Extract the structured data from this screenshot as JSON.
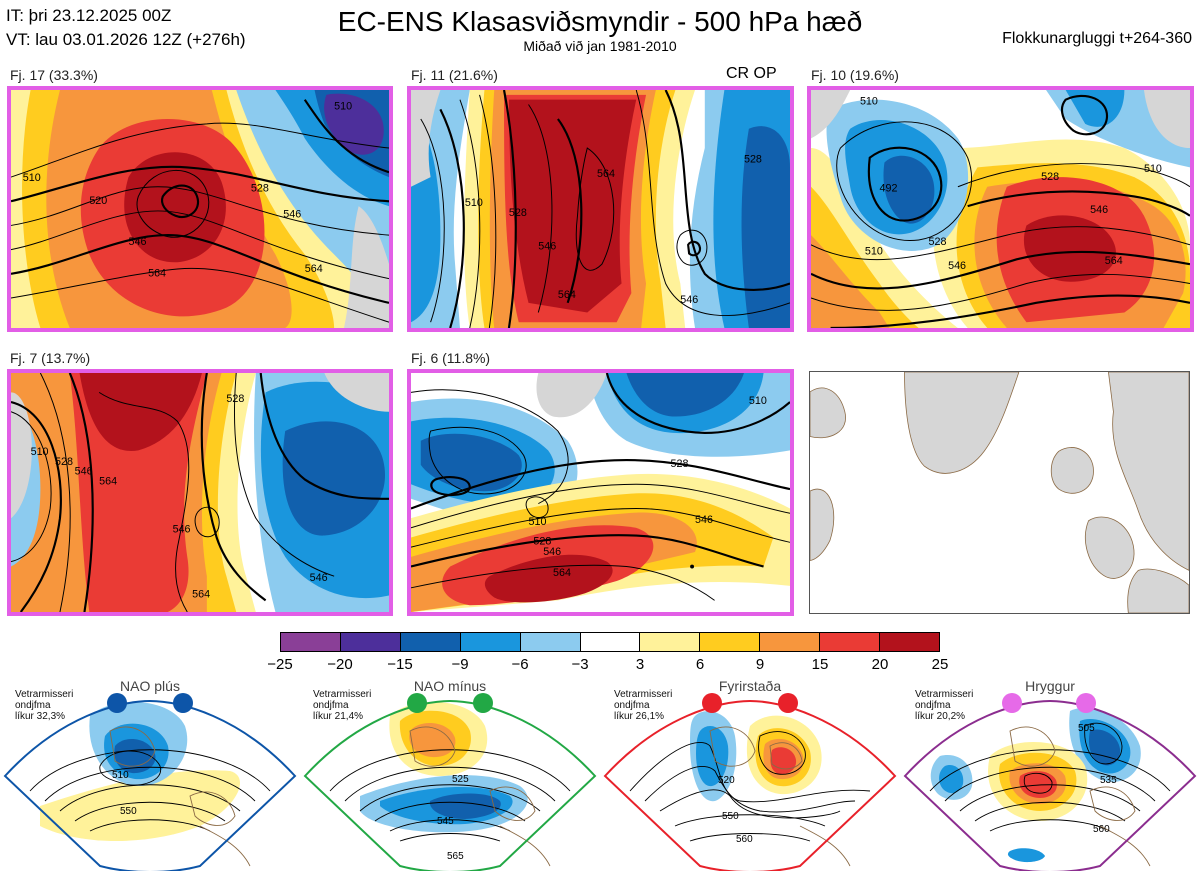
{
  "header": {
    "init_time": "IT: þri 23.12.2025 00Z",
    "valid_time": "VT: lau 03.01.2026 12Z  (+276h)",
    "title": "EC-ENS Klasasviðsmyndir - 500 hPa hæð",
    "subtitle": "Miðað við jan 1981-2010",
    "window": "Flokkunargluggi t+264-360"
  },
  "panels": [
    {
      "label": "Fj. 17 (33.3%)",
      "contours": [
        "510",
        "520",
        "546",
        "564",
        "528",
        "546",
        "564",
        "510"
      ],
      "tag": ""
    },
    {
      "label": "Fj. 11 (21.6%)",
      "contours": [
        "510",
        "528",
        "546",
        "564",
        "528",
        "546",
        "564"
      ],
      "tag": "CR OP"
    },
    {
      "label": "Fj. 10 (19.6%)",
      "contours": [
        "510",
        "492",
        "528",
        "546",
        "510",
        "528",
        "546",
        "564",
        "510"
      ],
      "tag": ""
    },
    {
      "label": "Fj. 7 (13.7%)",
      "contours": [
        "510",
        "528",
        "546",
        "564",
        "528",
        "546",
        "546",
        "564"
      ],
      "tag": ""
    },
    {
      "label": "Fj. 6 (11.8%)",
      "contours": [
        "510",
        "528",
        "510",
        "546",
        "528",
        "546",
        "564"
      ],
      "tag": ""
    }
  ],
  "colorbar": {
    "colors": [
      "#8a3f97",
      "#4d2f9b",
      "#1160ad",
      "#1a96dd",
      "#8ccbef",
      "#ffffff",
      "#fff29a",
      "#ffcc1f",
      "#f7963d",
      "#ea3b35",
      "#b3121c"
    ],
    "ticks": [
      "−25",
      "−20",
      "−15",
      "−9",
      "−6",
      "−3",
      "3",
      "6",
      "9",
      "15",
      "20",
      "25"
    ]
  },
  "regimes": [
    {
      "title": "NAO plús",
      "note": "Vetrarmisseri\nondjfma\nlíkur 32,3%",
      "color": "#0d55a8",
      "labels": [
        "510",
        "550"
      ]
    },
    {
      "title": "NAO mínus",
      "note": "Vetrarmisseri\nondjfma\nlíkur 21,4%",
      "color": "#22a845",
      "labels": [
        "525",
        "545",
        "565"
      ]
    },
    {
      "title": "Fyrirstaða",
      "note": "Vetrarmisseri\nondjfma\nlíkur 26,1%",
      "color": "#e8212a",
      "labels": [
        "520",
        "550",
        "560"
      ]
    },
    {
      "title": "Hryggur",
      "note": "Vetrarmisseri\nondjfma\nlíkur 20,2%",
      "color": "#e66ae8",
      "labels": [
        "505",
        "535",
        "560"
      ]
    }
  ]
}
